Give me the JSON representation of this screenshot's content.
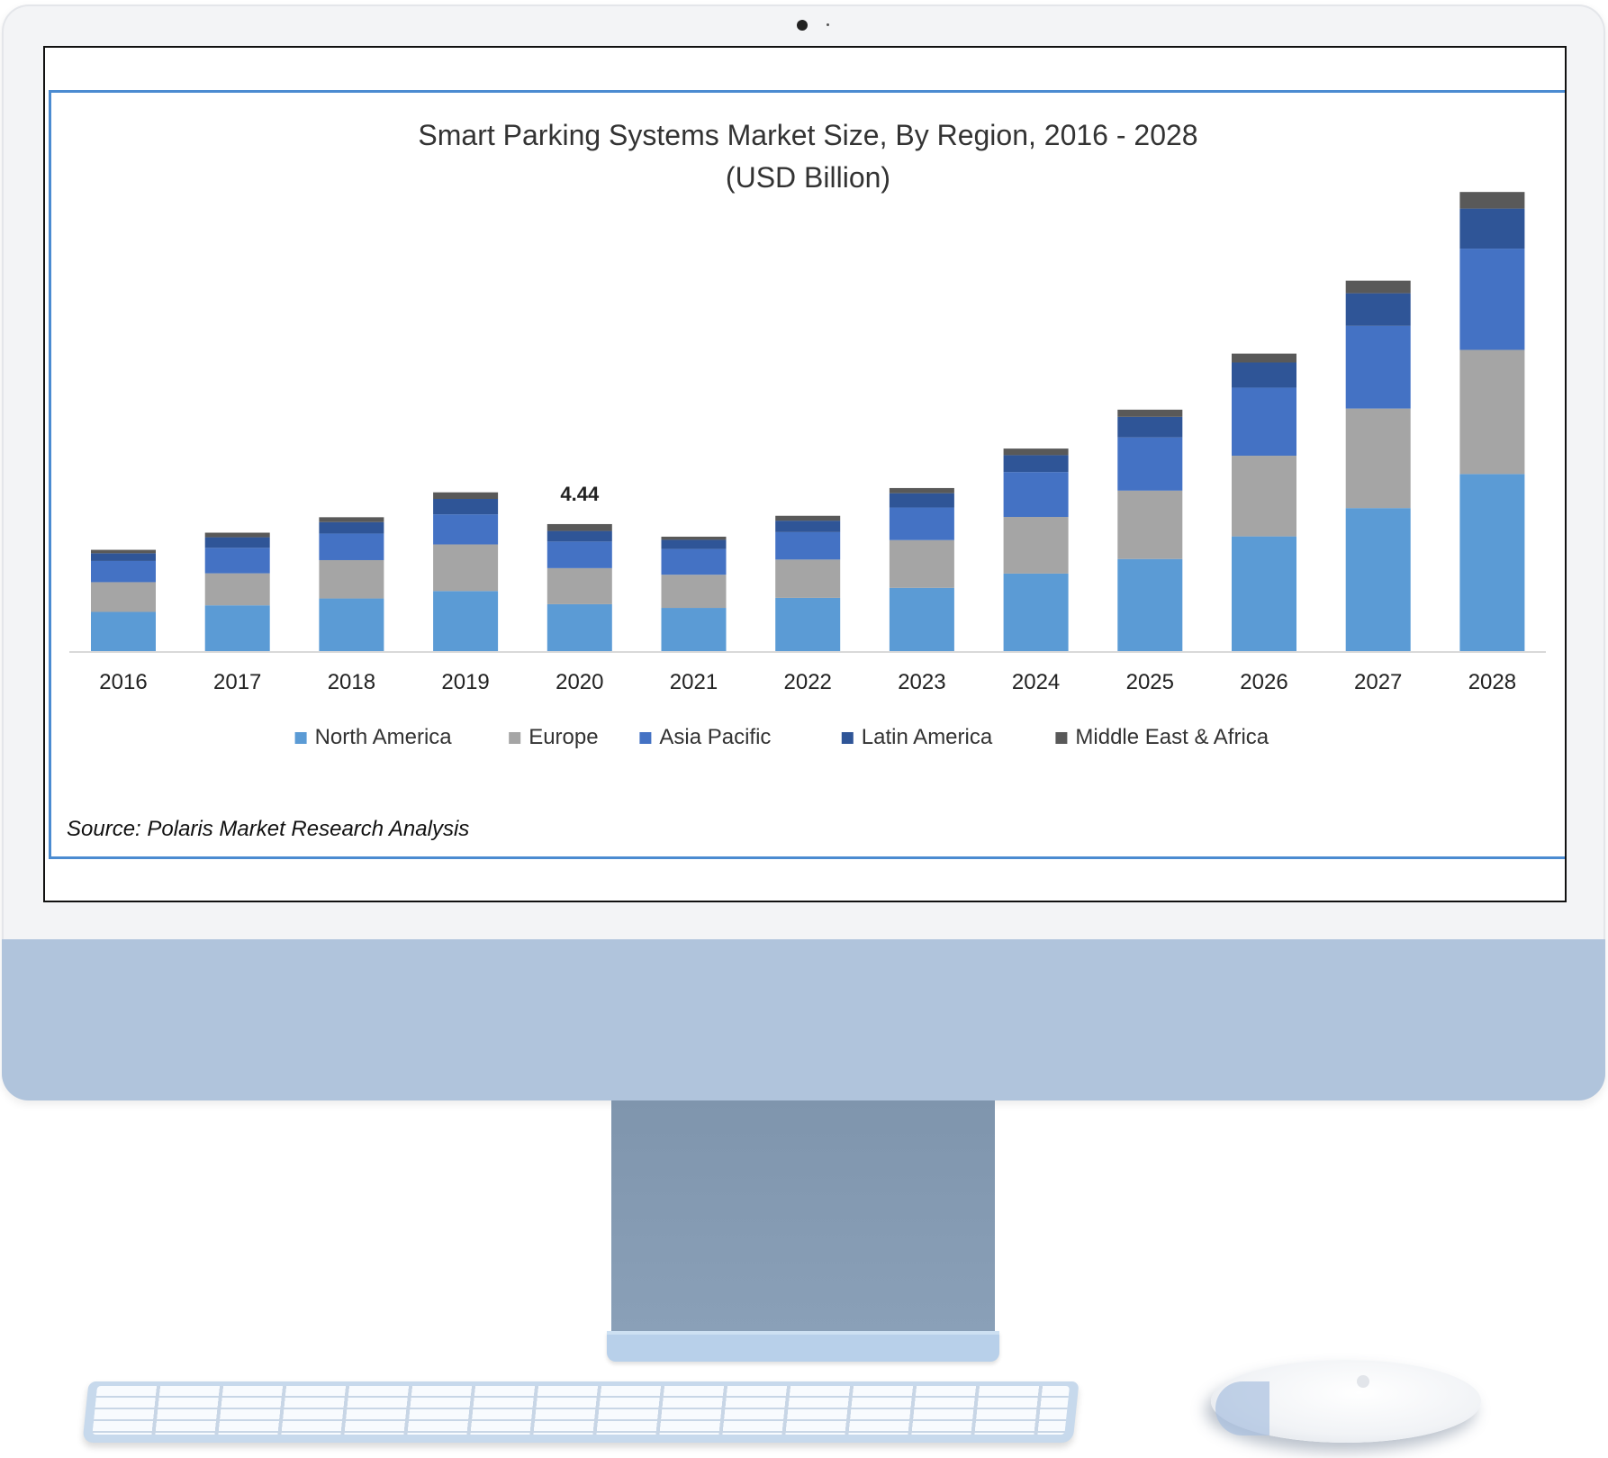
{
  "chart_data": {
    "type": "bar",
    "stacked": true,
    "title": "Smart Parking Systems Market Size, By Region, 2016 - 2028",
    "subtitle": "(USD Billion)",
    "xlabel": "",
    "ylabel": "",
    "categories": [
      "2016",
      "2017",
      "2018",
      "2019",
      "2020",
      "2021",
      "2022",
      "2023",
      "2024",
      "2025",
      "2026",
      "2027",
      "2028"
    ],
    "series": [
      {
        "name": "North America",
        "color": "#5b9bd5",
        "values": [
          1.37,
          1.6,
          1.84,
          2.1,
          1.64,
          1.51,
          1.86,
          2.21,
          2.71,
          3.22,
          4.01,
          5.0,
          6.19
        ]
      },
      {
        "name": "Europe",
        "color": "#a5a5a5",
        "values": [
          1.04,
          1.12,
          1.34,
          1.63,
          1.26,
          1.16,
          1.34,
          1.67,
          1.98,
          2.39,
          2.82,
          3.48,
          4.34
        ]
      },
      {
        "name": "Asia Pacific",
        "color": "#4472c4",
        "values": [
          0.74,
          0.89,
          0.93,
          1.05,
          0.93,
          0.9,
          0.96,
          1.14,
          1.57,
          1.86,
          2.38,
          2.89,
          3.54
        ]
      },
      {
        "name": "Latin America",
        "color": "#2f5597",
        "values": [
          0.27,
          0.37,
          0.4,
          0.54,
          0.37,
          0.32,
          0.4,
          0.5,
          0.59,
          0.72,
          0.88,
          1.14,
          1.4
        ]
      },
      {
        "name": "Middle East & Africa",
        "color": "#595959",
        "values": [
          0.12,
          0.16,
          0.17,
          0.23,
          0.24,
          0.11,
          0.17,
          0.18,
          0.23,
          0.25,
          0.31,
          0.44,
          0.58
        ]
      }
    ],
    "annotations": [
      {
        "category": "2020",
        "text": "4.44"
      }
    ],
    "ylim": [
      0,
      17
    ],
    "grid": false,
    "legend": "bottom"
  },
  "source": "Source: Polaris  Market Research Analysis"
}
